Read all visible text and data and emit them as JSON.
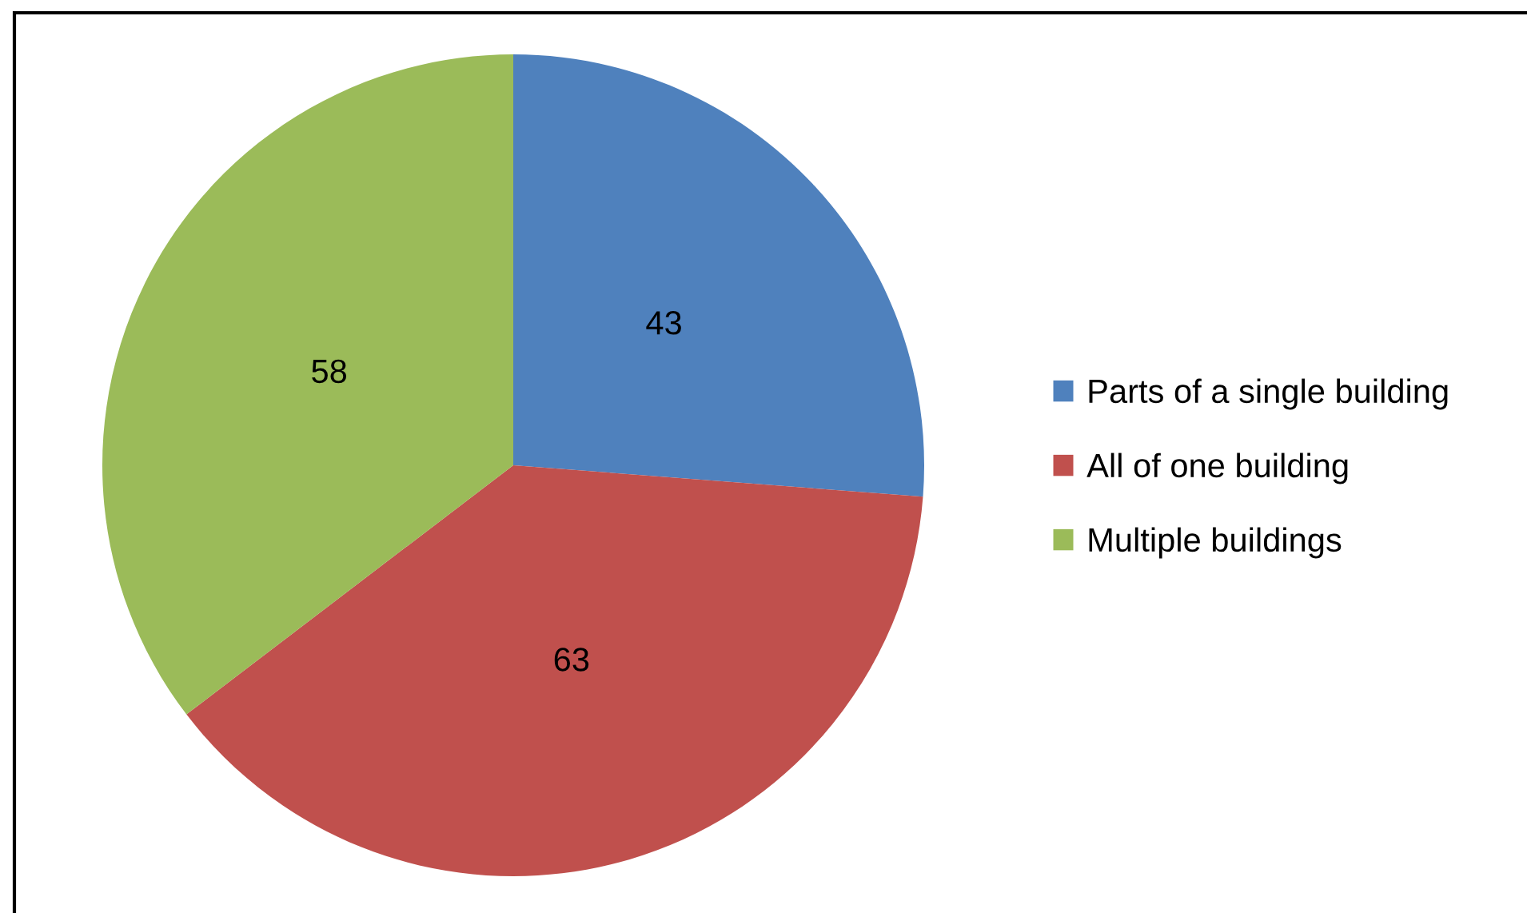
{
  "chart_data": {
    "type": "pie",
    "categories": [
      "Parts of a single building",
      "All of one building",
      "Multiple buildings"
    ],
    "values": [
      43,
      63,
      58
    ],
    "colors": [
      "#4f81bd",
      "#c0504d",
      "#9bbb59"
    ],
    "data_labels": true,
    "legend": "right"
  }
}
